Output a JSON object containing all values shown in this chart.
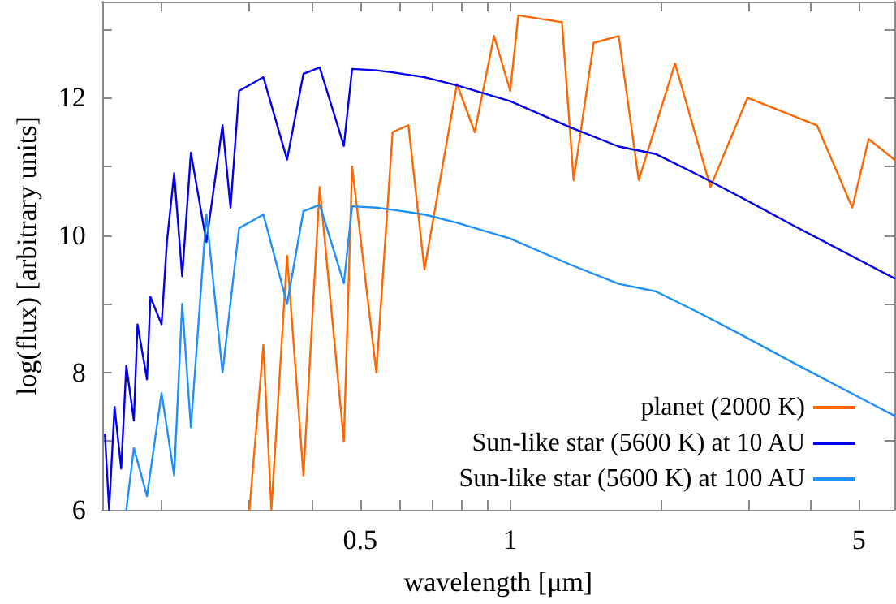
{
  "chart_data": {
    "type": "line",
    "xlabel": "wavelength [μm]",
    "ylabel": "log(flux) [arbitrary units]",
    "log": "x",
    "xlim": [
      0.152,
      5.89
    ],
    "ylim": [
      6,
      13.4
    ],
    "xticks": [
      {
        "value": 0.2,
        "label": null
      },
      {
        "value": 0.3,
        "label": null
      },
      {
        "value": 0.4,
        "label": null
      },
      0.5,
      {
        "value": 0.6,
        "label": null
      },
      {
        "value": 0.7,
        "label": null
      },
      {
        "value": 0.8,
        "label": null
      },
      {
        "value": 0.9,
        "label": null
      },
      1,
      {
        "value": 2,
        "label": null
      },
      {
        "value": 3,
        "label": null
      },
      {
        "value": 4,
        "label": null
      },
      5
    ],
    "yticks": [
      6,
      {
        "value": 7,
        "label": null
      },
      8,
      {
        "value": 9,
        "label": null
      },
      10,
      {
        "value": 11,
        "label": null
      },
      12,
      {
        "value": 13,
        "label": null
      }
    ],
    "grid": false,
    "legend": "bottom right",
    "marker": "none",
    "line_style": "solid",
    "series": [
      {
        "name": "planet (2000 K)",
        "color": "#ff6600",
        "x": [
          0.3,
          0.32,
          0.332,
          0.357,
          0.385,
          0.415,
          0.464,
          0.482,
          0.539,
          0.581,
          0.625,
          0.673,
          0.782,
          0.849,
          0.928,
          1,
          1.038,
          1.27,
          1.34,
          1.47,
          1.65,
          1.81,
          2.14,
          2.52,
          2.99,
          4.12,
          4.85,
          5.23,
          5.89
        ],
        "values": [
          6.0,
          8.4,
          6.0,
          9.7,
          6.5,
          10.7,
          7.0,
          11.0,
          8.0,
          11.5,
          11.6,
          9.5,
          12.2,
          11.5,
          12.9,
          12.1,
          13.2,
          13.1,
          10.8,
          12.8,
          12.9,
          10.8,
          12.5,
          10.7,
          12.0,
          11.6,
          10.4,
          11.4,
          11.1
        ]
      },
      {
        "name": "Sun-like star (5600 K) at 10 AU",
        "color": "#0000ee",
        "x": [
          0.154,
          0.157,
          0.161,
          0.166,
          0.17,
          0.176,
          0.179,
          0.187,
          0.19,
          0.2,
          0.205,
          0.212,
          0.22,
          0.229,
          0.246,
          0.265,
          0.275,
          0.286,
          0.32,
          0.357,
          0.385,
          0.415,
          0.464,
          0.482,
          0.539,
          0.581,
          0.673,
          0.782,
          1,
          1.32,
          1.65,
          1.96,
          2.39,
          2.92,
          3.74,
          4.68,
          5.89
        ],
        "values": [
          7.1,
          6.0,
          7.5,
          6.6,
          8.1,
          7.3,
          8.7,
          7.9,
          9.1,
          8.7,
          9.9,
          10.9,
          9.4,
          11.2,
          9.9,
          11.6,
          10.4,
          12.1,
          12.3,
          11.1,
          12.35,
          12.44,
          11.3,
          12.42,
          12.4,
          12.37,
          12.3,
          12.18,
          11.95,
          11.57,
          11.29,
          11.18,
          10.87,
          10.54,
          10.12,
          9.75,
          9.37
        ]
      },
      {
        "name": "Sun-like star (5600 K) at 100 AU",
        "color": "#1e8fff",
        "x": [
          0.17,
          0.176,
          0.187,
          0.2,
          0.212,
          0.22,
          0.229,
          0.246,
          0.265,
          0.286,
          0.32,
          0.357,
          0.385,
          0.415,
          0.464,
          0.482,
          0.539,
          0.581,
          0.673,
          0.782,
          1,
          1.32,
          1.65,
          1.96,
          2.39,
          2.92,
          3.74,
          4.68,
          5.89
        ],
        "values": [
          6.0,
          6.9,
          6.2,
          7.7,
          6.5,
          9.0,
          7.2,
          10.3,
          8.0,
          10.1,
          10.3,
          9.0,
          10.35,
          10.44,
          9.3,
          10.42,
          10.4,
          10.37,
          10.3,
          10.18,
          9.95,
          9.57,
          9.29,
          9.18,
          8.87,
          8.54,
          8.12,
          7.75,
          7.37
        ]
      }
    ]
  }
}
